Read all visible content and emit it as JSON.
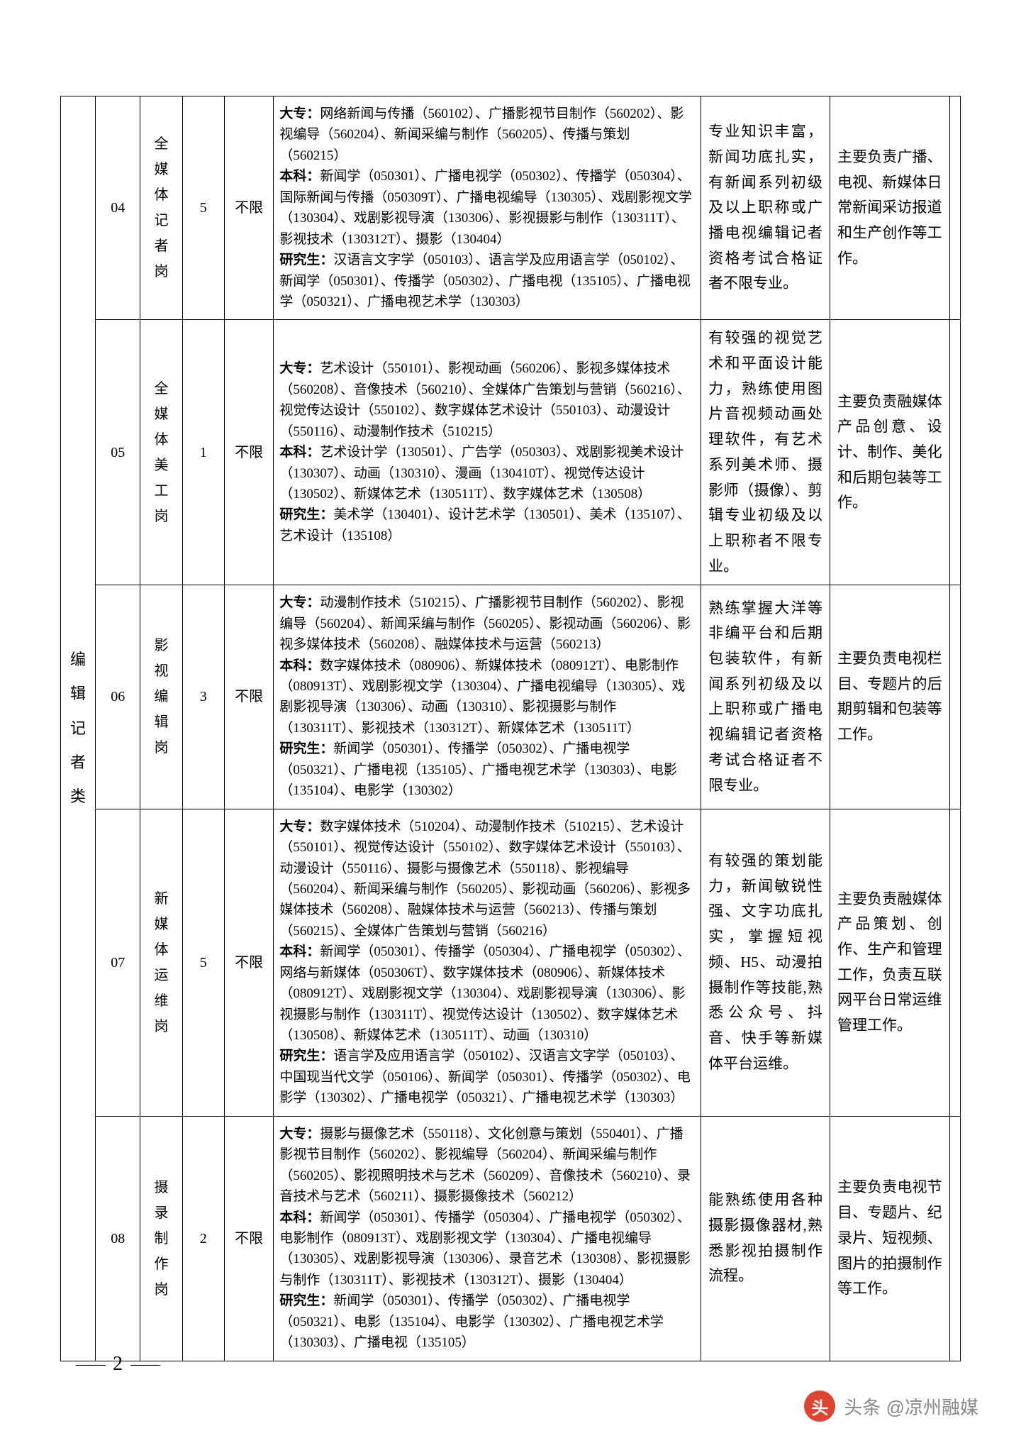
{
  "category": "编辑记者类",
  "pageNumber": "2",
  "watermark": {
    "logo": "头",
    "text": "头条 @凉州融媒"
  },
  "labels": {
    "dazhuan": "大专：",
    "benke": "本科：",
    "yanjiusheng": "研究生："
  },
  "rows": [
    {
      "code": "04",
      "position": "全媒体记者岗",
      "count": "5",
      "limit": "不限",
      "major_dz": "网络新闻与传播（560102）、广播影视节目制作（560202）、影视编导（560204）、新闻采编与制作（560205）、传播与策划（560215）",
      "major_bk": "新闻学（050301）、广播电视学（050302）、传播学（050304）、国际新闻与传播（050309T）、广播电视编导（130305）、戏剧影视文学（130304）、戏剧影视导演（130306）、影视摄影与制作（130311T）、影视技术（130312T）、摄影（130404）",
      "major_yj": "汉语言文字学（050103）、语言学及应用语言学（050102）、新闻学（050301）、传播学（050302）、广播电视（135105）、广播电视学（050321）、广播电视艺术学（130303）",
      "req": "专业知识丰富，新闻功底扎实，有新闻系列初级及以上职称或广播电视编辑记者资格考试合格证者不限专业。",
      "duty": "主要负责广播、电视、新媒体日常新闻采访报道和生产创作等工作。"
    },
    {
      "code": "05",
      "position": "全媒体美工岗",
      "count": "1",
      "limit": "不限",
      "major_dz": "艺术设计（550101）、影视动画（560206）、影视多媒体技术（560208）、音像技术（560210）、全媒体广告策划与营销（560216）、视觉传达设计（550102）、数字媒体艺术设计（550103）、动漫设计（550116）、动漫制作技术（510215）",
      "major_bk": "艺术设计学（130501）、广告学（050303）、戏剧影视美术设计（130307）、动画（130310）、漫画（130410T）、视觉传达设计（130502）、新媒体艺术（130511T）、数字媒体艺术（130508）",
      "major_yj": "美术学（130401）、设计艺术学（130501）、美术（135107）、艺术设计（135108）",
      "req": "有较强的视觉艺术和平面设计能力，熟练使用图片音视频动画处理软件，有艺术系列美术师、摄影师（摄像）、剪辑专业初级及以上职称者不限专业。",
      "duty": "主要负责融媒体产品创意、设计、制作、美化和后期包装等工作。"
    },
    {
      "code": "06",
      "position": "影视编辑岗",
      "count": "3",
      "limit": "不限",
      "major_dz": "动漫制作技术（510215）、广播影视节目制作（560202）、影视编导（560204）、新闻采编与制作（560205）、影视动画（560206）、影视多媒体技术（560208）、融媒体技术与运营（560213）",
      "major_bk": "数字媒体技术（080906）、新媒体技术（080912T）、电影制作（080913T）、戏剧影视文学（130304）、广播电视编导（130305）、戏剧影视导演（130306）、动画（130310）、影视摄影与制作（130311T）、影视技术（130312T）、新媒体艺术（130511T）",
      "major_yj": "新闻学（050301）、传播学（050302）、广播电视学（050321）、广播电视（135105）、广播电视艺术学（130303）、电影（135104）、电影学（130302）",
      "req": "熟练掌握大洋等非编平台和后期包装软件，有新闻系列初级及以上职称或广播电视编辑记者资格考试合格证者不限专业。",
      "duty": "主要负责电视栏目、专题片的后期剪辑和包装等工作。"
    },
    {
      "code": "07",
      "position": "新媒体运维岗",
      "count": "5",
      "limit": "不限",
      "major_dz": "数字媒体技术（510204）、动漫制作技术（510215）、艺术设计（550101）、视觉传达设计（550102）、数字媒体艺术设计（550103）、动漫设计（550116）、摄影与摄像艺术（550118）、影视编导（560204）、新闻采编与制作（560205）、影视动画（560206）、影视多媒体技术（560208）、融媒体技术与运营（560213）、传播与策划（560215）、全媒体广告策划与营销（560216）",
      "major_bk": "新闻学（050301）、传播学（050304）、广播电视学（050302）、网络与新媒体（050306T）、数字媒体技术（080906）、新媒体技术（080912T）、戏剧影视文学（130304）、戏剧影视导演（130306）、影视摄影与制作（130311T）、视觉传达设计（130502）、数字媒体艺术（130508）、新媒体艺术（130511T）、动画（130310）",
      "major_yj": "语言学及应用语言学（050102）、汉语言文字学（050103）、中国现当代文学（050106）、新闻学（050301）、传播学（050302）、电影学（130302）、广播电视学（050321）、广播电视艺术学（130303）",
      "req": "有较强的策划能力，新闻敏锐性强、文字功底扎实，掌握短视频、H5、动漫拍摄制作等技能,熟悉公众号、抖音、快手等新媒体平台运维。",
      "duty": "主要负责融媒体产品策划、创作、生产和管理工作，负责互联网平台日常运维管理工作。"
    },
    {
      "code": "08",
      "position": "摄录制作岗",
      "count": "2",
      "limit": "不限",
      "major_dz": "摄影与摄像艺术（550118）、文化创意与策划（550401）、广播影视节目制作（560202）、影视编导（560204）、新闻采编与制作（560205）、影视照明技术与艺术（560209）、音像技术（560210）、录音技术与艺术（560211）、摄影摄像技术（560212）",
      "major_bk": "新闻学（050301）、传播学（050304）、广播电视学（050302）、电影制作（080913T）、戏剧影视文学（130304）、广播电视编导（130305）、戏剧影视导演（130306）、录音艺术（130308）、影视摄影与制作（130311T）、影视技术（130312T）、摄影（130404）",
      "major_yj": "新闻学（050301）、传播学（050302）、广播电视学（050321）、电影（135104）、电影学（130302）、广播电视艺术学（130303）、广播电视（135105）",
      "req": "能熟练使用各种摄影摄像器材,熟悉影视拍摄制作流程。",
      "duty": "主要负责电视节目、专题片、纪录片、短视频、图片的拍摄制作等工作。"
    }
  ]
}
